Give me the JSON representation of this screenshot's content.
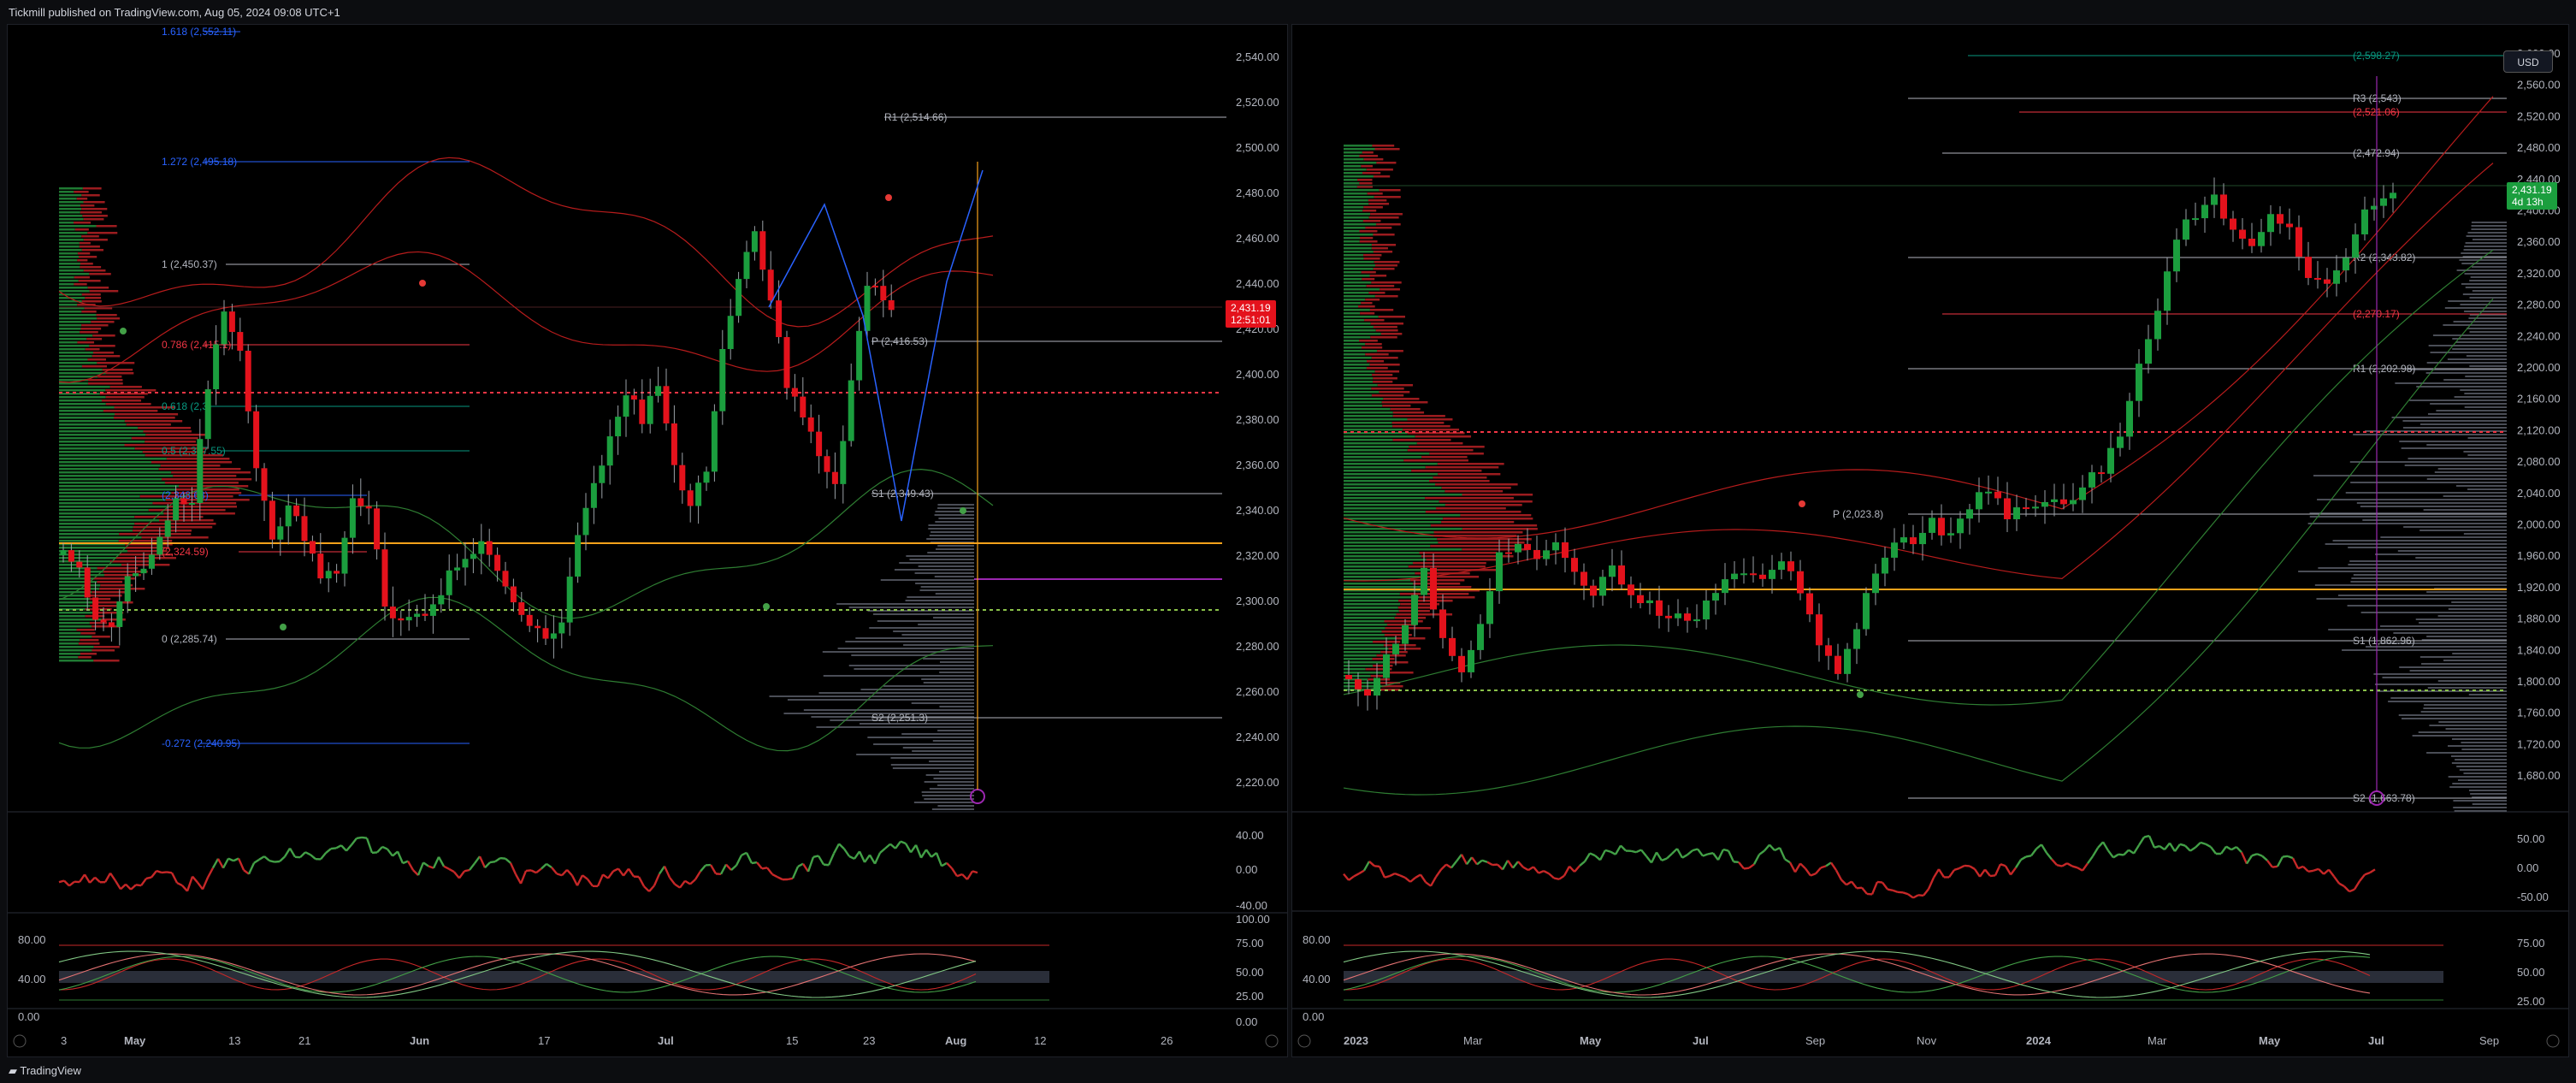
{
  "header": {
    "publisher": "Tickmill published on TradingView.com, Aug 05, 2024 09:08 UTC+1"
  },
  "footer": {
    "brand": "TradingView",
    "currency_button": "USD"
  },
  "colors": {
    "bull": "#089981",
    "bear": "#f23645",
    "up_candle": "#1b9e3e",
    "down_candle": "#e4121c",
    "accent_orange": "#f7a21b",
    "purple": "#9c27b0",
    "fib_blue": "#2962ff"
  },
  "left_panel": {
    "price_axis": [
      "2,540.00",
      "2,520.00",
      "2,500.00",
      "2,480.00",
      "2,460.00",
      "2,440.00",
      "2,420.00",
      "2,400.00",
      "2,380.00",
      "2,360.00",
      "2,340.00",
      "2,320.00",
      "2,300.00",
      "2,280.00",
      "2,260.00",
      "2,240.00",
      "2,220.00"
    ],
    "price_tag": {
      "price": "2,431.19",
      "countdown": "12:51:01"
    },
    "levels": [
      {
        "label": "1.618 (2,552.11)",
        "color": "#2962ff"
      },
      {
        "label": "R1 (2,514.66)",
        "color": "#b2b5be"
      },
      {
        "label": "1.272 (2,495.18)",
        "color": "#2962ff"
      },
      {
        "label": "1 (2,450.37)",
        "color": "#b2b5be"
      },
      {
        "label": "P (2,416.53)",
        "color": "#b2b5be"
      },
      {
        "label": "0.786 (2,415.1)",
        "color": "#f23645"
      },
      {
        "label": "0.618 (2,3",
        "color": "#089981"
      },
      {
        "label": "0.5 (2,367.55)",
        "color": "#089981"
      },
      {
        "label": "S1 (2,349.43)",
        "color": "#b2b5be"
      },
      {
        "label": "(2,348.63)",
        "color": "#2962ff"
      },
      {
        "label": "(2,324.59)",
        "color": "#f23645"
      },
      {
        "label": "0 (2,285.74)",
        "color": "#b2b5be"
      },
      {
        "label": "S2 (2,251.3)",
        "color": "#b2b5be"
      },
      {
        "label": "-0.272 (2,240.95)",
        "color": "#2962ff"
      }
    ],
    "rsi_axis": [
      "40.00",
      "0.00",
      "-40.00"
    ],
    "stoch_axis_left": [
      "80.00",
      "40.00",
      "0.00"
    ],
    "stoch_axis_right": [
      "100.00",
      "75.00",
      "50.00",
      "25.00",
      "0.00"
    ],
    "time_axis": [
      "3",
      "May",
      "13",
      "21",
      "Jun",
      "17",
      "Jul",
      "15",
      "23",
      "Aug",
      "12",
      "26"
    ]
  },
  "right_panel": {
    "price_axis": [
      "2,600.00",
      "2,560.00",
      "2,520.00",
      "2,480.00",
      "2,440.00",
      "2,400.00",
      "2,360.00",
      "2,320.00",
      "2,280.00",
      "2,240.00",
      "2,200.00",
      "2,160.00",
      "2,120.00",
      "2,080.00",
      "2,040.00",
      "2,000.00",
      "1,960.00",
      "1,920.00",
      "1,880.00",
      "1,840.00",
      "1,800.00",
      "1,760.00",
      "1,720.00",
      "1,680.00"
    ],
    "price_tag": {
      "price": "2,431.19",
      "countdown": "4d 13h"
    },
    "levels": [
      {
        "label": "(2,598.27)",
        "color": "#089981"
      },
      {
        "label": "R3 (2,543)",
        "color": "#b2b5be"
      },
      {
        "label": "(2,521.06)",
        "color": "#f23645"
      },
      {
        "label": "(2,472.94)",
        "color": "#b2b5be"
      },
      {
        "label": "R2 (2,343.82)",
        "color": "#b2b5be"
      },
      {
        "label": "(2,270.17)",
        "color": "#f23645"
      },
      {
        "label": "R1 (2,202.98)",
        "color": "#b2b5be"
      },
      {
        "label": "P (2,023.8)",
        "color": "#b2b5be"
      },
      {
        "label": "S1 (1,862.96)",
        "color": "#b2b5be"
      },
      {
        "label": "S2 (1,663.78)",
        "color": "#b2b5be"
      }
    ],
    "rsi_axis": [
      "50.00",
      "0.00",
      "-50.00"
    ],
    "stoch_axis_left": [
      "80.00",
      "40.00",
      "0.00"
    ],
    "stoch_axis_right": [
      "75.00",
      "50.00",
      "25.00"
    ],
    "time_axis": [
      "2023",
      "Mar",
      "May",
      "Jul",
      "Sep",
      "Nov",
      "2024",
      "Mar",
      "May",
      "Jul",
      "Sep"
    ]
  }
}
